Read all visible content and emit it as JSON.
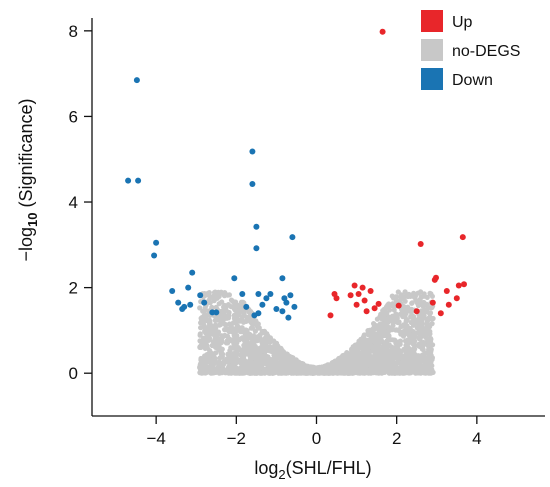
{
  "chart_data": {
    "type": "scatter",
    "title": "",
    "xlabel": {
      "prefix": "log",
      "sub": "2",
      "suffix": "(SHL/FHL)"
    },
    "ylabel": {
      "prefix": "−log",
      "sub": "10",
      "suffix": " (Significance)"
    },
    "xlim": [
      -5.6,
      5.7
    ],
    "ylim": [
      -1.0,
      8.3
    ],
    "xticks": [
      -4,
      -2,
      0,
      2,
      4
    ],
    "yticks": [
      0,
      2,
      4,
      6,
      8
    ],
    "xtick_labels": [
      "−4",
      "−2",
      "0",
      "2",
      "4"
    ],
    "ytick_labels": [
      "0",
      "2",
      "4",
      "6",
      "8"
    ],
    "grid": false,
    "legend_position": "top-right",
    "series": [
      {
        "name": "Up",
        "color": "#e8262a",
        "points": [
          [
            1.65,
            7.98
          ],
          [
            3.65,
            3.18
          ],
          [
            2.6,
            3.02
          ],
          [
            0.95,
            2.05
          ],
          [
            1.15,
            2.0
          ],
          [
            1.05,
            1.85
          ],
          [
            0.85,
            1.82
          ],
          [
            1.35,
            1.92
          ],
          [
            0.45,
            1.85
          ],
          [
            0.5,
            1.75
          ],
          [
            1.2,
            1.7
          ],
          [
            1.55,
            1.62
          ],
          [
            1.0,
            1.6
          ],
          [
            1.45,
            1.52
          ],
          [
            1.25,
            1.45
          ],
          [
            2.05,
            1.58
          ],
          [
            0.35,
            1.35
          ],
          [
            2.98,
            2.23
          ],
          [
            2.95,
            2.18
          ],
          [
            3.55,
            2.05
          ],
          [
            3.68,
            2.08
          ],
          [
            3.25,
            1.92
          ],
          [
            3.5,
            1.75
          ],
          [
            2.9,
            1.65
          ],
          [
            3.3,
            1.6
          ],
          [
            2.5,
            1.45
          ],
          [
            3.1,
            1.4
          ]
        ]
      },
      {
        "name": "no-DEGS",
        "color": "#c8c8c8",
        "cloud": true
      },
      {
        "name": "Down",
        "color": "#1a74b3",
        "points": [
          [
            -4.48,
            6.85
          ],
          [
            -4.7,
            4.5
          ],
          [
            -4.45,
            4.5
          ],
          [
            -1.6,
            5.18
          ],
          [
            -1.6,
            4.42
          ],
          [
            -1.5,
            3.42
          ],
          [
            -1.5,
            2.92
          ],
          [
            -0.6,
            3.18
          ],
          [
            -4.0,
            3.05
          ],
          [
            -4.05,
            2.75
          ],
          [
            -3.1,
            2.35
          ],
          [
            -3.6,
            1.92
          ],
          [
            -3.2,
            2.0
          ],
          [
            -2.9,
            1.82
          ],
          [
            -2.8,
            1.65
          ],
          [
            -3.45,
            1.65
          ],
          [
            -3.3,
            1.55
          ],
          [
            -3.15,
            1.6
          ],
          [
            -3.35,
            1.5
          ],
          [
            -2.6,
            1.42
          ],
          [
            -2.5,
            1.42
          ],
          [
            -2.05,
            2.22
          ],
          [
            -1.85,
            1.85
          ],
          [
            -1.75,
            1.55
          ],
          [
            -1.45,
            1.85
          ],
          [
            -1.35,
            1.6
          ],
          [
            -1.25,
            1.75
          ],
          [
            -1.15,
            1.85
          ],
          [
            -0.85,
            2.22
          ],
          [
            -0.8,
            1.75
          ],
          [
            -0.75,
            1.65
          ],
          [
            -0.65,
            1.82
          ],
          [
            -0.55,
            1.55
          ],
          [
            -1.0,
            1.5
          ],
          [
            -0.85,
            1.45
          ],
          [
            -1.45,
            1.4
          ],
          [
            -1.55,
            1.35
          ],
          [
            -0.7,
            1.3
          ]
        ]
      }
    ]
  }
}
